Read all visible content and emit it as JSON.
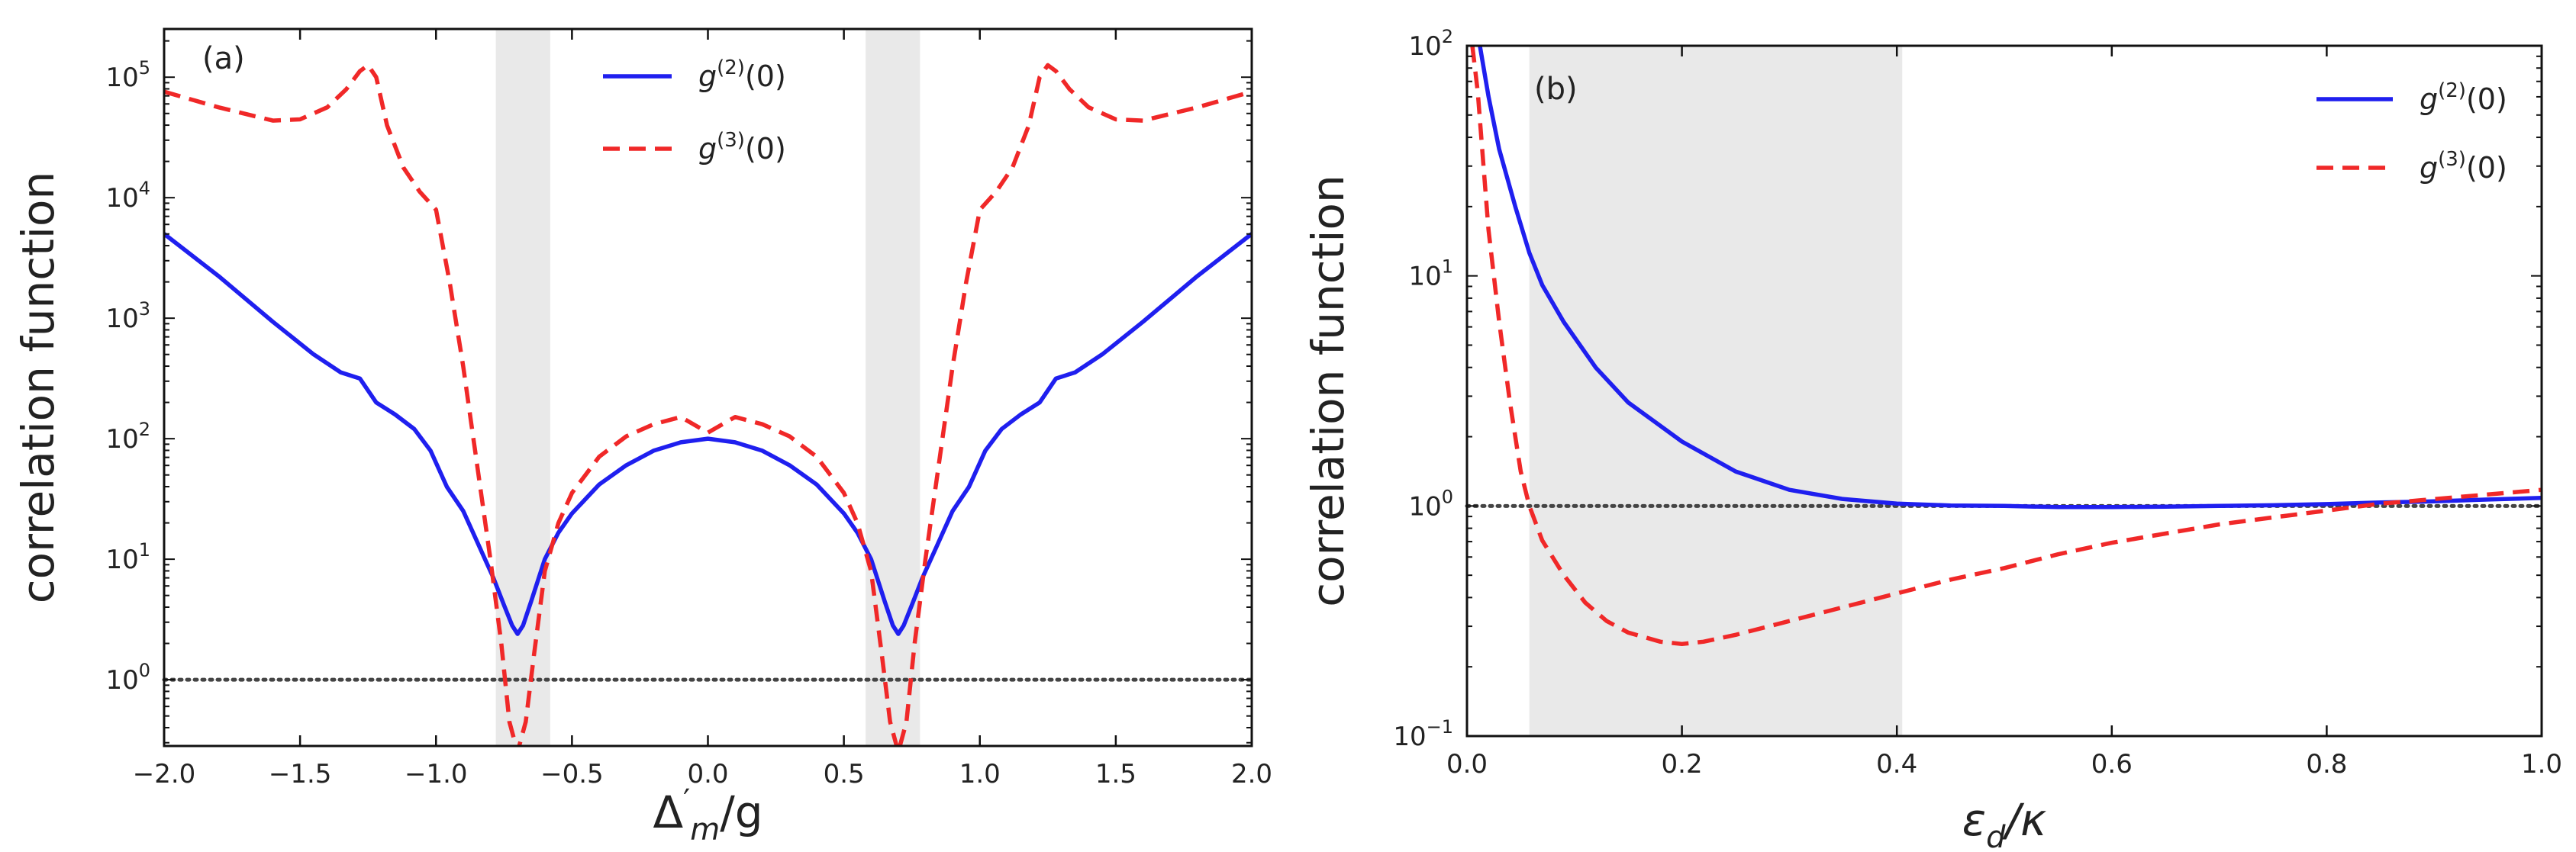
{
  "chart_data": [
    {
      "panel_label": "(a)",
      "type": "line",
      "y_scale": "log",
      "xlim": [
        -2.0,
        2.0
      ],
      "ylim_log10": [
        -0.55,
        5.4
      ],
      "xlabel_main": "Δ",
      "xlabel_sup": "′",
      "xlabel_sub": "m",
      "xlabel_tail": "/g",
      "ylabel": "correlation function",
      "x_ticks": [
        "−2.0",
        "−1.5",
        "−1.0",
        "−0.5",
        "0.0",
        "0.5",
        "1.0",
        "1.5",
        "2.0"
      ],
      "x_tick_values": [
        -2.0,
        -1.5,
        -1.0,
        -0.5,
        0.0,
        0.5,
        1.0,
        1.5,
        2.0
      ],
      "y_tick_exponents": [
        0,
        1,
        2,
        3,
        4,
        5
      ],
      "y_tick_base": "10",
      "y_tick_sup": [
        "0",
        "1",
        "2",
        "3",
        "4",
        "5"
      ],
      "shaded_regions": [
        [
          -0.78,
          -0.58
        ],
        [
          0.58,
          0.78
        ]
      ],
      "reference_line": {
        "y": 1,
        "style": "dotted"
      },
      "legend_position": "top-center",
      "series": [
        {
          "name": "g(2)(0)",
          "legend_base": "g",
          "legend_sup": "(2)",
          "legend_tail": "(0)",
          "color": "#1f1fef",
          "style": "solid",
          "x": [
            -2.0,
            -1.8,
            -1.6,
            -1.45,
            -1.35,
            -1.28,
            -1.22,
            -1.15,
            -1.08,
            -1.02,
            -0.96,
            -0.9,
            -0.84,
            -0.79,
            -0.75,
            -0.72,
            -0.7,
            -0.68,
            -0.65,
            -0.6,
            -0.55,
            -0.5,
            -0.4,
            -0.3,
            -0.2,
            -0.1,
            0.0,
            0.1,
            0.2,
            0.3,
            0.4,
            0.5,
            0.55,
            0.6,
            0.65,
            0.68,
            0.7,
            0.72,
            0.75,
            0.79,
            0.84,
            0.9,
            0.96,
            1.02,
            1.08,
            1.15,
            1.22,
            1.28,
            1.35,
            1.45,
            1.6,
            1.8,
            2.0
          ],
          "y_log10": [
            3.7,
            3.35,
            2.97,
            2.7,
            2.55,
            2.5,
            2.3,
            2.2,
            2.08,
            1.9,
            1.6,
            1.4,
            1.1,
            0.85,
            0.62,
            0.45,
            0.38,
            0.45,
            0.65,
            1.0,
            1.22,
            1.38,
            1.62,
            1.78,
            1.9,
            1.97,
            2.0,
            1.97,
            1.9,
            1.78,
            1.62,
            1.38,
            1.22,
            1.0,
            0.65,
            0.45,
            0.38,
            0.45,
            0.62,
            0.85,
            1.1,
            1.4,
            1.6,
            1.9,
            2.08,
            2.2,
            2.3,
            2.5,
            2.55,
            2.7,
            2.97,
            3.35,
            3.7
          ]
        },
        {
          "name": "g(3)(0)",
          "legend_base": "g",
          "legend_sup": "(3)",
          "legend_tail": "(0)",
          "color": "#f02828",
          "style": "dashed",
          "x": [
            -2.0,
            -1.8,
            -1.6,
            -1.5,
            -1.4,
            -1.33,
            -1.28,
            -1.25,
            -1.22,
            -1.18,
            -1.12,
            -1.06,
            -1.0,
            -0.95,
            -0.9,
            -0.85,
            -0.8,
            -0.76,
            -0.73,
            -0.7,
            -0.67,
            -0.64,
            -0.6,
            -0.55,
            -0.5,
            -0.4,
            -0.3,
            -0.2,
            -0.1,
            0.0,
            0.1,
            0.2,
            0.3,
            0.4,
            0.5,
            0.55,
            0.6,
            0.64,
            0.67,
            0.7,
            0.73,
            0.76,
            0.8,
            0.85,
            0.9,
            0.95,
            1.0,
            1.06,
            1.12,
            1.18,
            1.22,
            1.25,
            1.28,
            1.33,
            1.4,
            1.5,
            1.6,
            1.8,
            2.0
          ],
          "y_log10": [
            4.88,
            4.75,
            4.64,
            4.65,
            4.75,
            4.9,
            5.05,
            5.1,
            5.0,
            4.6,
            4.25,
            4.05,
            3.9,
            3.3,
            2.6,
            1.8,
            1.0,
            0.3,
            -0.35,
            -0.6,
            -0.35,
            0.2,
            0.9,
            1.3,
            1.55,
            1.85,
            2.02,
            2.12,
            2.18,
            2.05,
            2.18,
            2.12,
            2.02,
            1.85,
            1.55,
            1.3,
            0.9,
            0.2,
            -0.35,
            -0.6,
            -0.35,
            0.3,
            1.0,
            1.8,
            2.6,
            3.3,
            3.9,
            4.05,
            4.25,
            4.6,
            5.0,
            5.1,
            5.05,
            4.9,
            4.75,
            4.65,
            4.64,
            4.75,
            4.88
          ]
        }
      ]
    },
    {
      "panel_label": "(b)",
      "type": "line",
      "y_scale": "log",
      "xlim": [
        0.0,
        1.0
      ],
      "ylim_log10": [
        -1.0,
        2.0
      ],
      "xlabel_main": "ε",
      "xlabel_sub": "d",
      "xlabel_tail": "/κ",
      "ylabel": "correlation function",
      "x_ticks": [
        "0.0",
        "0.2",
        "0.4",
        "0.6",
        "0.8",
        "1.0"
      ],
      "x_tick_values": [
        0.0,
        0.2,
        0.4,
        0.6,
        0.8,
        1.0
      ],
      "y_tick_exponents": [
        -1,
        0,
        1,
        2
      ],
      "y_tick_base": "10",
      "y_tick_sup": [
        "−1",
        "0",
        "1",
        "2"
      ],
      "shaded_regions": [
        [
          0.058,
          0.405
        ]
      ],
      "reference_line": {
        "y": 1,
        "style": "dotted"
      },
      "legend_position": "top-right",
      "series": [
        {
          "name": "g(2)(0)",
          "legend_base": "g",
          "legend_sup": "(2)",
          "legend_tail": "(0)",
          "color": "#1f1fef",
          "style": "solid",
          "x": [
            0.012,
            0.02,
            0.03,
            0.045,
            0.058,
            0.07,
            0.09,
            0.12,
            0.15,
            0.2,
            0.25,
            0.3,
            0.35,
            0.4,
            0.45,
            0.5,
            0.55,
            0.6,
            0.65,
            0.7,
            0.75,
            0.8,
            0.85,
            0.9,
            0.95,
            1.0
          ],
          "y_log10": [
            2.0,
            1.78,
            1.55,
            1.3,
            1.1,
            0.96,
            0.8,
            0.6,
            0.45,
            0.28,
            0.15,
            0.07,
            0.03,
            0.01,
            0.002,
            0.0,
            -0.005,
            -0.005,
            -0.003,
            0.0,
            0.003,
            0.008,
            0.015,
            0.02,
            0.028,
            0.035
          ]
        },
        {
          "name": "g(3)(0)",
          "legend_base": "g",
          "legend_sup": "(3)",
          "legend_tail": "(0)",
          "color": "#f02828",
          "style": "dashed",
          "x": [
            0.005,
            0.01,
            0.015,
            0.02,
            0.03,
            0.04,
            0.05,
            0.058,
            0.07,
            0.09,
            0.11,
            0.13,
            0.15,
            0.18,
            0.2,
            0.22,
            0.25,
            0.3,
            0.35,
            0.4,
            0.45,
            0.5,
            0.55,
            0.6,
            0.65,
            0.7,
            0.75,
            0.8,
            0.85,
            0.9,
            0.95,
            1.0
          ],
          "y_log10": [
            2.0,
            1.8,
            1.5,
            1.2,
            0.8,
            0.45,
            0.15,
            0.0,
            -0.15,
            -0.3,
            -0.42,
            -0.5,
            -0.55,
            -0.59,
            -0.6,
            -0.59,
            -0.56,
            -0.5,
            -0.44,
            -0.38,
            -0.32,
            -0.27,
            -0.21,
            -0.16,
            -0.12,
            -0.08,
            -0.05,
            -0.02,
            0.01,
            0.03,
            0.05,
            0.07
          ]
        }
      ]
    }
  ]
}
